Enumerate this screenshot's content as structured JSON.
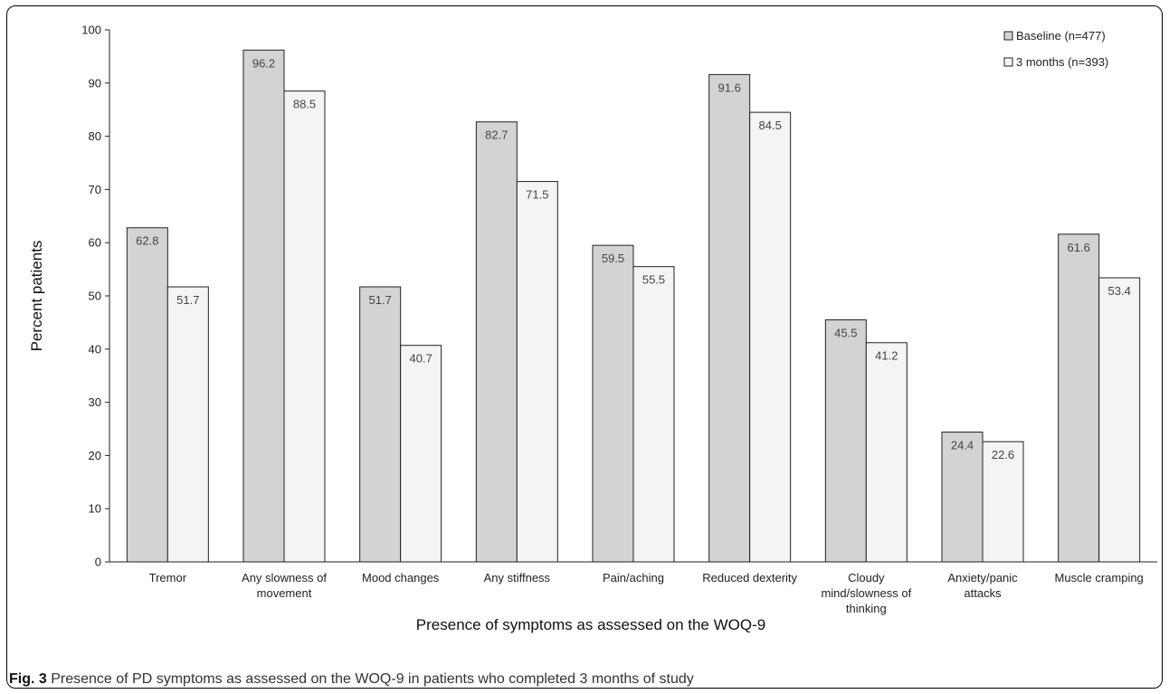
{
  "caption": {
    "label": "Fig. 3",
    "text": " Presence of PD symptoms as assessed on the WOQ-9 in patients who completed 3 months of study"
  },
  "colors": {
    "baseline": "#d3d3d3",
    "three_months": "#f4f4f4",
    "bar_stroke": "#222222",
    "axis": "#222222"
  },
  "chart_data": {
    "type": "bar",
    "title": "",
    "xlabel": "Presence of symptoms as assessed on the WOQ-9",
    "ylabel": "Percent patients",
    "ylim": [
      0,
      100
    ],
    "yticks": [
      0,
      10,
      20,
      30,
      40,
      50,
      60,
      70,
      80,
      90,
      100
    ],
    "grid": false,
    "legend_position": "top-right",
    "categories": [
      [
        "Tremor"
      ],
      [
        "Any slowness of",
        "movement"
      ],
      [
        "Mood changes"
      ],
      [
        "Any stiffness"
      ],
      [
        "Pain/aching"
      ],
      [
        "Reduced dexterity"
      ],
      [
        "Cloudy",
        "mind/slowness of",
        "thinking"
      ],
      [
        "Anxiety/panic",
        "attacks"
      ],
      [
        "Muscle cramping"
      ]
    ],
    "series": [
      {
        "name": "Baseline (n=477)",
        "values": [
          62.8,
          96.2,
          51.7,
          82.7,
          59.5,
          91.6,
          45.5,
          24.4,
          61.6
        ]
      },
      {
        "name": "3 months (n=393)",
        "values": [
          51.7,
          88.5,
          40.7,
          71.5,
          55.5,
          84.5,
          41.2,
          22.6,
          53.4
        ]
      }
    ]
  }
}
